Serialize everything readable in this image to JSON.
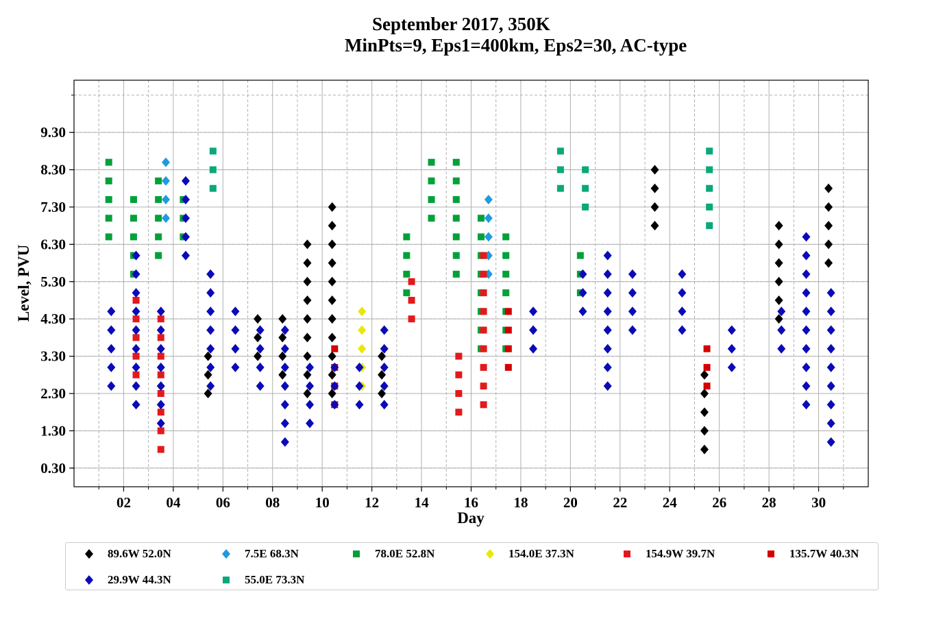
{
  "title_line1": "September 2017, 350K",
  "title_line2": "MinPts=9, Eps1=400km, Eps2=30, AC-type",
  "chart_data": {
    "type": "scatter",
    "xlabel": "Day",
    "ylabel": "Level, PVU",
    "xlim": [
      0,
      32
    ],
    "ylim": [
      -0.2,
      10.7
    ],
    "xticks": [
      2,
      4,
      6,
      8,
      10,
      12,
      14,
      16,
      18,
      20,
      22,
      24,
      26,
      28,
      30
    ],
    "xtick_labels": [
      "02",
      "04",
      "06",
      "08",
      "10",
      "12",
      "14",
      "16",
      "18",
      "20",
      "22",
      "24",
      "26",
      "28",
      "30"
    ],
    "yticks": [
      0.3,
      1.3,
      2.3,
      3.3,
      4.3,
      5.3,
      6.3,
      7.3,
      8.3,
      9.3
    ],
    "ytick_labels": [
      "0.30",
      "1.30",
      "2.30",
      "3.30",
      "4.30",
      "5.30",
      "6.30",
      "7.30",
      "8.30",
      "9.30"
    ],
    "grid": true,
    "legend_position": "bottom",
    "series": [
      {
        "name": "89.6W 52.0N",
        "marker": "diamond",
        "color": "#000000",
        "points": [
          [
            5.4,
            3.3
          ],
          [
            5.4,
            2.8
          ],
          [
            5.4,
            2.3
          ],
          [
            7.4,
            4.3
          ],
          [
            7.4,
            3.8
          ],
          [
            7.4,
            3.3
          ],
          [
            8.4,
            4.3
          ],
          [
            8.4,
            3.8
          ],
          [
            8.4,
            3.3
          ],
          [
            8.4,
            2.8
          ],
          [
            9.4,
            6.3
          ],
          [
            9.4,
            5.8
          ],
          [
            9.4,
            5.3
          ],
          [
            9.4,
            4.8
          ],
          [
            9.4,
            4.3
          ],
          [
            9.4,
            3.8
          ],
          [
            9.4,
            3.3
          ],
          [
            9.4,
            2.8
          ],
          [
            9.4,
            2.3
          ],
          [
            10.4,
            7.3
          ],
          [
            10.4,
            6.8
          ],
          [
            10.4,
            6.3
          ],
          [
            10.4,
            5.8
          ],
          [
            10.4,
            5.3
          ],
          [
            10.4,
            4.8
          ],
          [
            10.4,
            4.3
          ],
          [
            10.4,
            3.8
          ],
          [
            10.4,
            3.3
          ],
          [
            10.4,
            2.8
          ],
          [
            10.4,
            2.3
          ],
          [
            12.4,
            3.3
          ],
          [
            12.4,
            2.8
          ],
          [
            12.4,
            2.3
          ],
          [
            23.4,
            8.3
          ],
          [
            23.4,
            7.8
          ],
          [
            23.4,
            7.3
          ],
          [
            23.4,
            6.8
          ],
          [
            25.4,
            2.8
          ],
          [
            25.4,
            2.3
          ],
          [
            25.4,
            1.8
          ],
          [
            25.4,
            1.3
          ],
          [
            25.4,
            0.8
          ],
          [
            28.4,
            6.8
          ],
          [
            28.4,
            6.3
          ],
          [
            28.4,
            5.8
          ],
          [
            28.4,
            5.3
          ],
          [
            28.4,
            4.8
          ],
          [
            28.4,
            4.3
          ],
          [
            30.4,
            7.8
          ],
          [
            30.4,
            7.3
          ],
          [
            30.4,
            6.8
          ],
          [
            30.4,
            6.3
          ],
          [
            30.4,
            5.8
          ]
        ]
      },
      {
        "name": "7.5E 68.3N",
        "marker": "diamond",
        "color": "#1f9be0",
        "points": [
          [
            3.7,
            8.5
          ],
          [
            3.7,
            8.0
          ],
          [
            3.7,
            7.5
          ],
          [
            3.7,
            7.0
          ],
          [
            16.7,
            7.5
          ],
          [
            16.7,
            7.0
          ],
          [
            16.7,
            6.5
          ],
          [
            16.7,
            6.0
          ],
          [
            16.7,
            5.5
          ]
        ]
      },
      {
        "name": "78.0E 52.8N",
        "marker": "square",
        "color": "#00a13a",
        "points": [
          [
            1.4,
            8.5
          ],
          [
            1.4,
            8.0
          ],
          [
            1.4,
            7.5
          ],
          [
            1.4,
            7.0
          ],
          [
            1.4,
            6.5
          ],
          [
            2.4,
            7.5
          ],
          [
            2.4,
            7.0
          ],
          [
            2.4,
            6.5
          ],
          [
            2.4,
            6.0
          ],
          [
            2.4,
            5.5
          ],
          [
            3.4,
            8.0
          ],
          [
            3.4,
            7.5
          ],
          [
            3.4,
            7.0
          ],
          [
            3.4,
            6.5
          ],
          [
            3.4,
            6.0
          ],
          [
            4.4,
            7.5
          ],
          [
            4.4,
            7.0
          ],
          [
            4.4,
            6.5
          ],
          [
            13.4,
            6.5
          ],
          [
            13.4,
            6.0
          ],
          [
            13.4,
            5.5
          ],
          [
            13.4,
            5.0
          ],
          [
            14.4,
            8.5
          ],
          [
            14.4,
            8.0
          ],
          [
            14.4,
            7.5
          ],
          [
            14.4,
            7.0
          ],
          [
            15.4,
            8.5
          ],
          [
            15.4,
            8.0
          ],
          [
            15.4,
            7.5
          ],
          [
            15.4,
            7.0
          ],
          [
            15.4,
            6.5
          ],
          [
            15.4,
            6.0
          ],
          [
            15.4,
            5.5
          ],
          [
            16.4,
            7.0
          ],
          [
            16.4,
            6.5
          ],
          [
            16.4,
            6.0
          ],
          [
            16.4,
            5.5
          ],
          [
            16.4,
            5.0
          ],
          [
            16.4,
            4.5
          ],
          [
            16.4,
            4.0
          ],
          [
            16.4,
            3.5
          ],
          [
            17.4,
            6.5
          ],
          [
            17.4,
            6.0
          ],
          [
            17.4,
            5.5
          ],
          [
            17.4,
            5.0
          ],
          [
            17.4,
            4.5
          ],
          [
            17.4,
            4.0
          ],
          [
            17.4,
            3.5
          ],
          [
            20.4,
            6.0
          ],
          [
            20.4,
            5.5
          ],
          [
            20.4,
            5.0
          ]
        ]
      },
      {
        "name": "154.0E 37.3N",
        "marker": "diamond",
        "color": "#e8e800",
        "points": [
          [
            11.6,
            4.5
          ],
          [
            11.6,
            4.0
          ],
          [
            11.6,
            3.5
          ],
          [
            11.6,
            3.0
          ],
          [
            11.6,
            2.5
          ]
        ]
      },
      {
        "name": "154.9W 39.7N",
        "marker": "square",
        "color": "#e31a1c",
        "points": [
          [
            2.5,
            4.8
          ],
          [
            2.5,
            4.3
          ],
          [
            2.5,
            3.8
          ],
          [
            2.5,
            3.3
          ],
          [
            2.5,
            2.8
          ],
          [
            3.5,
            4.3
          ],
          [
            3.5,
            3.8
          ],
          [
            3.5,
            3.3
          ],
          [
            3.5,
            2.8
          ],
          [
            3.5,
            2.3
          ],
          [
            3.5,
            1.8
          ],
          [
            3.5,
            1.3
          ],
          [
            3.5,
            0.8
          ],
          [
            13.6,
            5.3
          ],
          [
            13.6,
            4.8
          ],
          [
            13.6,
            4.3
          ],
          [
            15.5,
            3.3
          ],
          [
            15.5,
            2.8
          ],
          [
            15.5,
            2.3
          ],
          [
            15.5,
            1.8
          ],
          [
            16.5,
            6.0
          ],
          [
            16.5,
            5.5
          ],
          [
            16.5,
            5.0
          ],
          [
            16.5,
            4.5
          ],
          [
            16.5,
            4.0
          ],
          [
            16.5,
            3.5
          ],
          [
            16.5,
            3.0
          ],
          [
            16.5,
            2.5
          ],
          [
            16.5,
            2.0
          ]
        ]
      },
      {
        "name": "135.7W 40.3N",
        "marker": "square",
        "color": "#d40000",
        "points": [
          [
            10.5,
            3.5
          ],
          [
            10.5,
            3.0
          ],
          [
            10.5,
            2.5
          ],
          [
            10.5,
            2.0
          ],
          [
            17.5,
            4.5
          ],
          [
            17.5,
            4.0
          ],
          [
            17.5,
            3.5
          ],
          [
            17.5,
            3.0
          ],
          [
            25.5,
            3.5
          ],
          [
            25.5,
            3.0
          ],
          [
            25.5,
            2.5
          ]
        ]
      },
      {
        "name": "29.9W 44.3N",
        "marker": "diamond",
        "color": "#0a0ab8",
        "points": [
          [
            1.5,
            4.5
          ],
          [
            1.5,
            4.0
          ],
          [
            1.5,
            3.5
          ],
          [
            1.5,
            3.0
          ],
          [
            1.5,
            2.5
          ],
          [
            2.5,
            6.0
          ],
          [
            2.5,
            5.5
          ],
          [
            2.5,
            5.0
          ],
          [
            2.5,
            4.5
          ],
          [
            2.5,
            4.0
          ],
          [
            2.5,
            3.5
          ],
          [
            2.5,
            3.0
          ],
          [
            2.5,
            2.5
          ],
          [
            2.5,
            2.0
          ],
          [
            3.5,
            4.5
          ],
          [
            3.5,
            4.0
          ],
          [
            3.5,
            3.5
          ],
          [
            3.5,
            3.0
          ],
          [
            3.5,
            2.5
          ],
          [
            3.5,
            2.0
          ],
          [
            3.5,
            1.5
          ],
          [
            4.5,
            8.0
          ],
          [
            4.5,
            7.5
          ],
          [
            4.5,
            7.0
          ],
          [
            4.5,
            6.5
          ],
          [
            4.5,
            6.0
          ],
          [
            5.5,
            5.5
          ],
          [
            5.5,
            5.0
          ],
          [
            5.5,
            4.5
          ],
          [
            5.5,
            4.0
          ],
          [
            5.5,
            3.5
          ],
          [
            5.5,
            3.0
          ],
          [
            5.5,
            2.5
          ],
          [
            6.5,
            4.5
          ],
          [
            6.5,
            4.0
          ],
          [
            6.5,
            3.5
          ],
          [
            6.5,
            3.0
          ],
          [
            7.5,
            4.0
          ],
          [
            7.5,
            3.5
          ],
          [
            7.5,
            3.0
          ],
          [
            7.5,
            2.5
          ],
          [
            8.5,
            4.0
          ],
          [
            8.5,
            3.5
          ],
          [
            8.5,
            3.0
          ],
          [
            8.5,
            2.5
          ],
          [
            8.5,
            2.0
          ],
          [
            8.5,
            1.5
          ],
          [
            8.5,
            1.0
          ],
          [
            9.5,
            3.0
          ],
          [
            9.5,
            2.5
          ],
          [
            9.5,
            2.0
          ],
          [
            9.5,
            1.5
          ],
          [
            10.5,
            3.0
          ],
          [
            10.5,
            2.5
          ],
          [
            10.5,
            2.0
          ],
          [
            11.5,
            3.0
          ],
          [
            11.5,
            2.5
          ],
          [
            11.5,
            2.0
          ],
          [
            12.5,
            4.0
          ],
          [
            12.5,
            3.5
          ],
          [
            12.5,
            3.0
          ],
          [
            12.5,
            2.5
          ],
          [
            12.5,
            2.0
          ],
          [
            18.5,
            4.5
          ],
          [
            18.5,
            4.0
          ],
          [
            18.5,
            3.5
          ],
          [
            20.5,
            5.5
          ],
          [
            20.5,
            5.0
          ],
          [
            20.5,
            4.5
          ],
          [
            21.5,
            6.0
          ],
          [
            21.5,
            5.5
          ],
          [
            21.5,
            5.0
          ],
          [
            21.5,
            4.5
          ],
          [
            21.5,
            4.0
          ],
          [
            21.5,
            3.5
          ],
          [
            21.5,
            3.0
          ],
          [
            21.5,
            2.5
          ],
          [
            22.5,
            5.5
          ],
          [
            22.5,
            5.0
          ],
          [
            22.5,
            4.5
          ],
          [
            22.5,
            4.0
          ],
          [
            24.5,
            5.5
          ],
          [
            24.5,
            5.0
          ],
          [
            24.5,
            4.5
          ],
          [
            24.5,
            4.0
          ],
          [
            26.5,
            4.0
          ],
          [
            26.5,
            3.5
          ],
          [
            26.5,
            3.0
          ],
          [
            28.5,
            4.5
          ],
          [
            28.5,
            4.0
          ],
          [
            28.5,
            3.5
          ],
          [
            29.5,
            6.5
          ],
          [
            29.5,
            6.0
          ],
          [
            29.5,
            5.5
          ],
          [
            29.5,
            5.0
          ],
          [
            29.5,
            4.5
          ],
          [
            29.5,
            4.0
          ],
          [
            29.5,
            3.5
          ],
          [
            29.5,
            3.0
          ],
          [
            29.5,
            2.5
          ],
          [
            29.5,
            2.0
          ],
          [
            30.5,
            5.0
          ],
          [
            30.5,
            4.5
          ],
          [
            30.5,
            4.0
          ],
          [
            30.5,
            3.5
          ],
          [
            30.5,
            3.0
          ],
          [
            30.5,
            2.5
          ],
          [
            30.5,
            2.0
          ],
          [
            30.5,
            1.5
          ],
          [
            30.5,
            1.0
          ]
        ]
      },
      {
        "name": "55.0E 73.3N",
        "marker": "square",
        "color": "#0aa87a",
        "points": [
          [
            5.6,
            8.8
          ],
          [
            5.6,
            8.3
          ],
          [
            5.6,
            7.8
          ],
          [
            19.6,
            8.8
          ],
          [
            19.6,
            8.3
          ],
          [
            19.6,
            7.8
          ],
          [
            20.6,
            8.3
          ],
          [
            20.6,
            7.8
          ],
          [
            20.6,
            7.3
          ],
          [
            25.6,
            8.8
          ],
          [
            25.6,
            8.3
          ],
          [
            25.6,
            7.8
          ],
          [
            25.6,
            7.3
          ],
          [
            25.6,
            6.8
          ]
        ]
      }
    ]
  }
}
